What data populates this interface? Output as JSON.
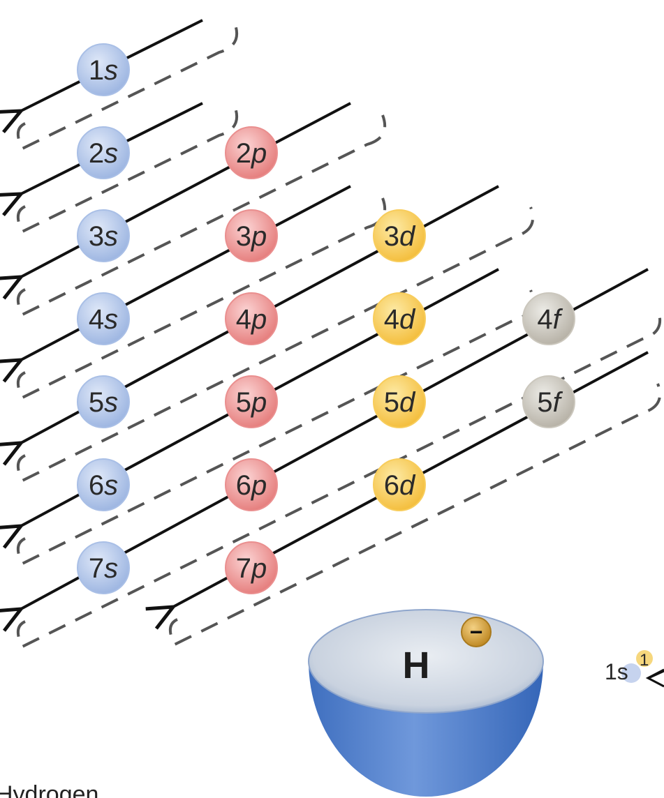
{
  "orbitals": [
    {
      "n": "1",
      "l": "s",
      "type": "s"
    },
    {
      "n": "2",
      "l": "s",
      "type": "s"
    },
    {
      "n": "2",
      "l": "p",
      "type": "p"
    },
    {
      "n": "3",
      "l": "s",
      "type": "s"
    },
    {
      "n": "3",
      "l": "p",
      "type": "p"
    },
    {
      "n": "3",
      "l": "d",
      "type": "d"
    },
    {
      "n": "4",
      "l": "s",
      "type": "s"
    },
    {
      "n": "4",
      "l": "p",
      "type": "p"
    },
    {
      "n": "4",
      "l": "d",
      "type": "d"
    },
    {
      "n": "4",
      "l": "f",
      "type": "f"
    },
    {
      "n": "5",
      "l": "s",
      "type": "s"
    },
    {
      "n": "5",
      "l": "p",
      "type": "p"
    },
    {
      "n": "5",
      "l": "d",
      "type": "d"
    },
    {
      "n": "5",
      "l": "f",
      "type": "f"
    },
    {
      "n": "6",
      "l": "s",
      "type": "s"
    },
    {
      "n": "6",
      "l": "p",
      "type": "p"
    },
    {
      "n": "6",
      "l": "d",
      "type": "d"
    },
    {
      "n": "7",
      "l": "s",
      "type": "s"
    },
    {
      "n": "7",
      "l": "p",
      "type": "p"
    }
  ],
  "colors": {
    "s": "#a9bfe6",
    "p": "#ea8f8f",
    "d": "#f8cd5c",
    "f": "#cbc7bd",
    "arrow": "#111111",
    "dash": "#555555",
    "electron": "#d4a33c",
    "sphere_top": "#d8e0ea",
    "sphere_side": "#5a86cf"
  },
  "atom": {
    "symbol": "H",
    "electron_sign": "−",
    "config_orbital": "1s",
    "config_superscript": "1"
  },
  "caption": "Hydrogen"
}
